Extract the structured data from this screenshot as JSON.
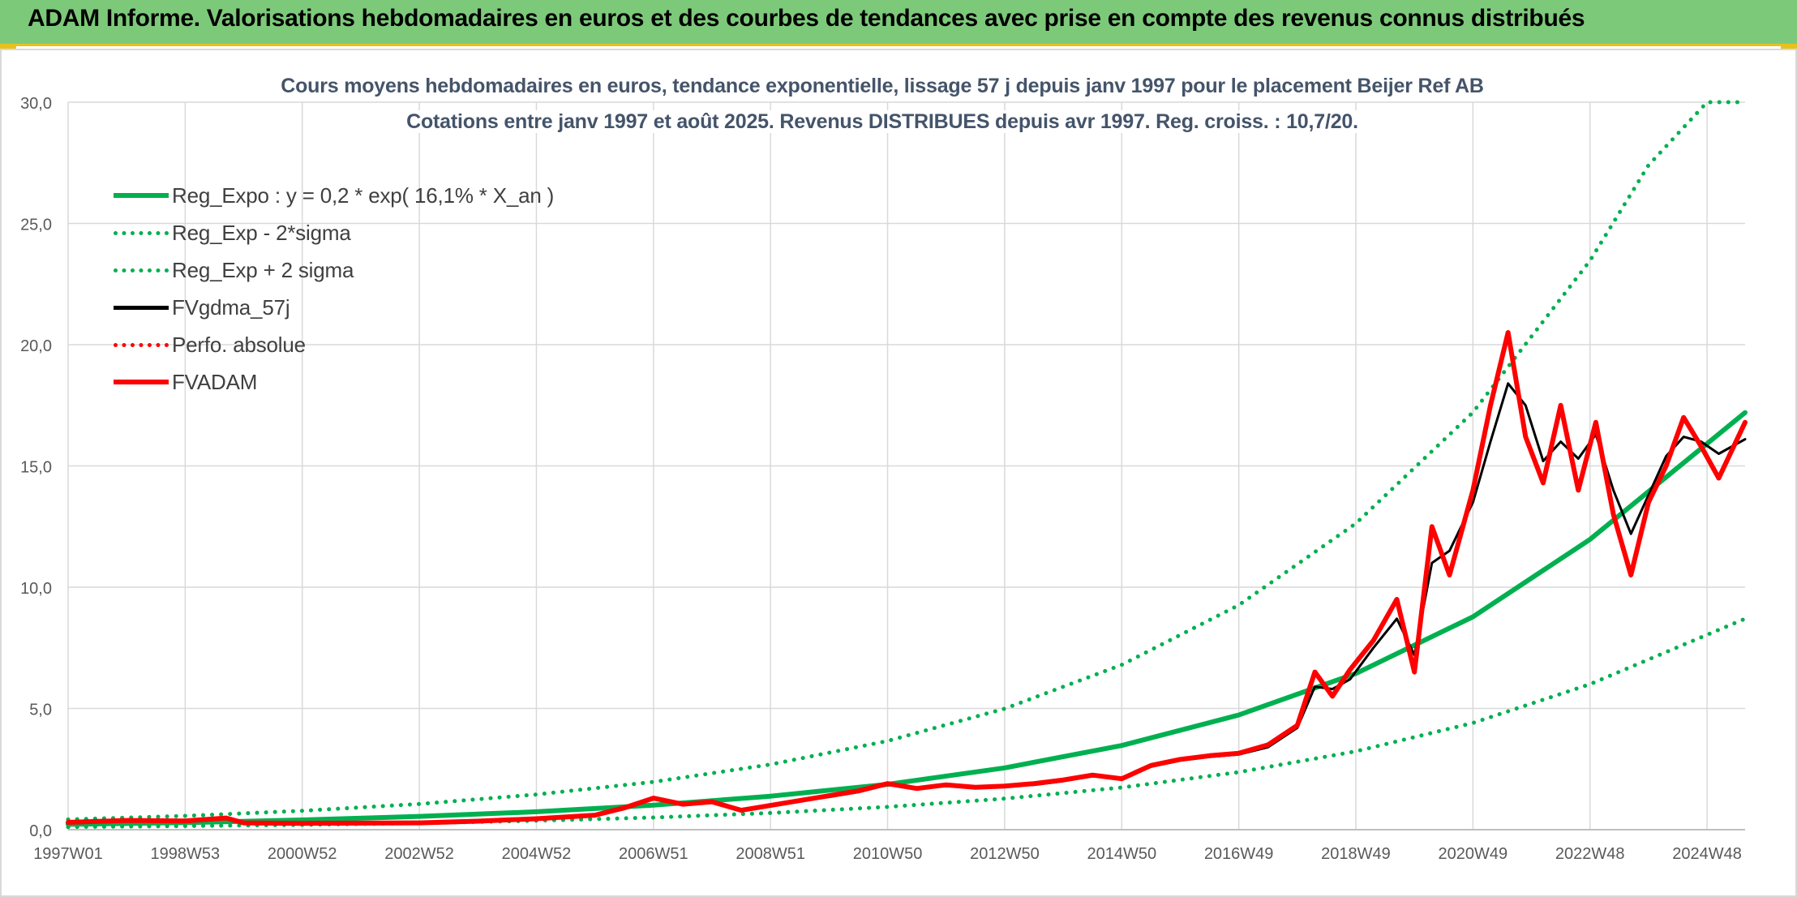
{
  "header": {
    "title": "ADAM Informe. Valorisations hebdomadaires en euros et des courbes de tendances avec prise en compte des revenus connus distribués",
    "accent_color": "#7dc97a",
    "border_color": "#e8c21c"
  },
  "chart_data": {
    "type": "line",
    "title": "Cours moyens hebdomadaires en euros, tendance exponentielle, lissage 57 j depuis janv 1997 pour le placement Beijer Ref AB",
    "subtitle": "Cotations entre janv 1997 et août 2025. Revenus DISTRIBUES depuis avr 1997. Reg. croiss. : 10,7/20.",
    "xlabel": "",
    "ylabel": "",
    "x_range": [
      1997.0,
      2025.65
    ],
    "ylim": [
      0,
      30
    ],
    "y_ticks": [
      "0,0",
      "5,0",
      "10,0",
      "15,0",
      "20,0",
      "25,0",
      "30,0"
    ],
    "x_ticks": [
      {
        "label": "1997W01",
        "x": 1997.0
      },
      {
        "label": "1998W53",
        "x": 1999.0
      },
      {
        "label": "2000W52",
        "x": 2001.0
      },
      {
        "label": "2002W52",
        "x": 2003.0
      },
      {
        "label": "2004W52",
        "x": 2005.0
      },
      {
        "label": "2006W51",
        "x": 2007.0
      },
      {
        "label": "2008W51",
        "x": 2009.0
      },
      {
        "label": "2010W50",
        "x": 2011.0
      },
      {
        "label": "2012W50",
        "x": 2013.0
      },
      {
        "label": "2014W50",
        "x": 2015.0
      },
      {
        "label": "2016W49",
        "x": 2017.0
      },
      {
        "label": "2018W49",
        "x": 2019.0
      },
      {
        "label": "2020W49",
        "x": 2021.0
      },
      {
        "label": "2022W48",
        "x": 2023.0
      },
      {
        "label": "2024W48",
        "x": 2025.0
      }
    ],
    "grid": true,
    "legend_position": "top-left",
    "series": [
      {
        "name": "Reg_Expo : y = 0,2 * exp( 16,1% *  X_an )",
        "color": "#00b050",
        "style": "solid",
        "x": [
          1997.0,
          1999.0,
          2001.0,
          2003.0,
          2005.0,
          2007.0,
          2009.0,
          2011.0,
          2013.0,
          2015.0,
          2017.0,
          2019.0,
          2021.0,
          2023.0,
          2025.65
        ],
        "y": [
          0.22,
          0.29,
          0.4,
          0.55,
          0.74,
          1.01,
          1.38,
          1.87,
          2.55,
          3.47,
          4.73,
          6.44,
          8.78,
          11.97,
          17.2
        ]
      },
      {
        "name": "Reg_Exp - 2*sigma",
        "color": "#00b050",
        "style": "dotted",
        "x": [
          1997.0,
          1999.0,
          2001.0,
          2003.0,
          2005.0,
          2007.0,
          2009.0,
          2011.0,
          2013.0,
          2015.0,
          2017.0,
          2019.0,
          2021.0,
          2023.0,
          2025.65
        ],
        "y": [
          0.11,
          0.15,
          0.2,
          0.27,
          0.37,
          0.5,
          0.69,
          0.94,
          1.28,
          1.74,
          2.37,
          3.23,
          4.4,
          6.0,
          8.7
        ]
      },
      {
        "name": "Reg_Exp + 2 sigma",
        "color": "#00b050",
        "style": "dotted",
        "x": [
          1997.0,
          1999.0,
          2001.0,
          2003.0,
          2005.0,
          2007.0,
          2009.0,
          2011.0,
          2013.0,
          2015.0,
          2017.0,
          2019.0,
          2021.0,
          2023.0,
          2024.0,
          2025.0,
          2025.65
        ],
        "y": [
          0.42,
          0.57,
          0.78,
          1.06,
          1.45,
          1.97,
          2.69,
          3.66,
          4.99,
          6.8,
          9.26,
          12.63,
          17.21,
          23.46,
          27.4,
          30.0,
          30.0
        ]
      },
      {
        "name": "FVgdma_57j",
        "color": "#000000",
        "style": "solid",
        "x": [
          1997.0,
          1998.0,
          1999.0,
          1999.7,
          2000.0,
          2001.0,
          2002.0,
          2003.0,
          2004.0,
          2005.0,
          2006.0,
          2006.5,
          2007.0,
          2007.5,
          2008.0,
          2008.5,
          2009.0,
          2009.5,
          2010.0,
          2010.5,
          2011.0,
          2011.5,
          2012.0,
          2012.5,
          2013.0,
          2013.5,
          2014.0,
          2014.5,
          2015.0,
          2015.5,
          2016.0,
          2016.5,
          2017.0,
          2017.5,
          2018.0,
          2018.3,
          2018.6,
          2018.9,
          2019.3,
          2019.7,
          2020.0,
          2020.3,
          2020.6,
          2021.0,
          2021.3,
          2021.6,
          2021.9,
          2022.2,
          2022.5,
          2022.8,
          2023.1,
          2023.4,
          2023.7,
          2024.0,
          2024.3,
          2024.6,
          2024.9,
          2025.2,
          2025.65
        ],
        "y": [
          0.3,
          0.37,
          0.35,
          0.45,
          0.28,
          0.26,
          0.27,
          0.28,
          0.35,
          0.45,
          0.58,
          0.85,
          1.25,
          1.05,
          1.15,
          0.85,
          1.0,
          1.2,
          1.35,
          1.55,
          1.85,
          1.7,
          1.8,
          1.75,
          1.8,
          1.85,
          2.0,
          2.2,
          2.15,
          2.6,
          2.85,
          3.0,
          3.1,
          3.4,
          4.2,
          5.9,
          5.8,
          6.2,
          7.5,
          8.7,
          7.2,
          11.0,
          11.5,
          13.5,
          16.0,
          18.4,
          17.5,
          15.2,
          16.0,
          15.3,
          16.3,
          14.0,
          12.2,
          13.8,
          15.4,
          16.2,
          16.0,
          15.5,
          16.1
        ]
      },
      {
        "name": "Perfo. absolue",
        "color": "#ff0000",
        "style": "dotted",
        "x": [
          1997.0,
          1998.0,
          1999.0,
          1999.7,
          2000.0,
          2001.0,
          2002.0,
          2003.0,
          2004.0,
          2005.0,
          2006.0,
          2006.5,
          2007.0,
          2007.5,
          2008.0,
          2008.5,
          2009.0,
          2009.5,
          2010.0,
          2010.5,
          2011.0,
          2011.5,
          2012.0,
          2012.5,
          2013.0,
          2013.5,
          2014.0,
          2014.5,
          2015.0,
          2015.5,
          2016.0,
          2016.5,
          2017.0,
          2017.5,
          2018.0,
          2018.3,
          2018.6,
          2018.9,
          2019.3,
          2019.7,
          2020.0,
          2020.3,
          2020.6,
          2021.0,
          2021.3,
          2021.6,
          2021.9,
          2022.2,
          2022.5,
          2022.8,
          2023.1,
          2023.4,
          2023.7,
          2024.0,
          2024.3,
          2024.6,
          2024.9,
          2025.2,
          2025.65
        ],
        "y": [
          0.3,
          0.38,
          0.36,
          0.48,
          0.28,
          0.26,
          0.27,
          0.28,
          0.35,
          0.45,
          0.6,
          0.9,
          1.3,
          1.05,
          1.15,
          0.8,
          1.0,
          1.2,
          1.4,
          1.6,
          1.9,
          1.7,
          1.85,
          1.75,
          1.8,
          1.9,
          2.05,
          2.25,
          2.1,
          2.65,
          2.9,
          3.05,
          3.15,
          3.5,
          4.3,
          6.5,
          5.5,
          6.6,
          7.8,
          9.5,
          6.5,
          12.5,
          10.5,
          14.0,
          17.5,
          20.5,
          16.2,
          14.3,
          17.5,
          14.0,
          16.8,
          13.0,
          10.5,
          13.5,
          15.0,
          17.0,
          15.8,
          14.5,
          16.8
        ]
      },
      {
        "name": "FVADAM",
        "color": "#ff0000",
        "style": "solid",
        "x": [
          1997.0,
          1998.0,
          1999.0,
          1999.7,
          2000.0,
          2001.0,
          2002.0,
          2003.0,
          2004.0,
          2005.0,
          2006.0,
          2006.5,
          2007.0,
          2007.5,
          2008.0,
          2008.5,
          2009.0,
          2009.5,
          2010.0,
          2010.5,
          2011.0,
          2011.5,
          2012.0,
          2012.5,
          2013.0,
          2013.5,
          2014.0,
          2014.5,
          2015.0,
          2015.5,
          2016.0,
          2016.5,
          2017.0,
          2017.5,
          2018.0,
          2018.3,
          2018.6,
          2018.9,
          2019.3,
          2019.7,
          2020.0,
          2020.3,
          2020.6,
          2021.0,
          2021.3,
          2021.6,
          2021.9,
          2022.2,
          2022.5,
          2022.8,
          2023.1,
          2023.4,
          2023.7,
          2024.0,
          2024.3,
          2024.6,
          2024.9,
          2025.2,
          2025.65
        ],
        "y": [
          0.3,
          0.38,
          0.36,
          0.48,
          0.28,
          0.26,
          0.27,
          0.28,
          0.35,
          0.45,
          0.6,
          0.9,
          1.3,
          1.05,
          1.15,
          0.8,
          1.0,
          1.2,
          1.4,
          1.6,
          1.9,
          1.7,
          1.85,
          1.75,
          1.8,
          1.9,
          2.05,
          2.25,
          2.1,
          2.65,
          2.9,
          3.05,
          3.15,
          3.5,
          4.3,
          6.5,
          5.5,
          6.6,
          7.8,
          9.5,
          6.5,
          12.5,
          10.5,
          14.0,
          17.5,
          20.5,
          16.2,
          14.3,
          17.5,
          14.0,
          16.8,
          13.0,
          10.5,
          13.5,
          15.0,
          17.0,
          15.8,
          14.5,
          16.8
        ]
      }
    ]
  }
}
